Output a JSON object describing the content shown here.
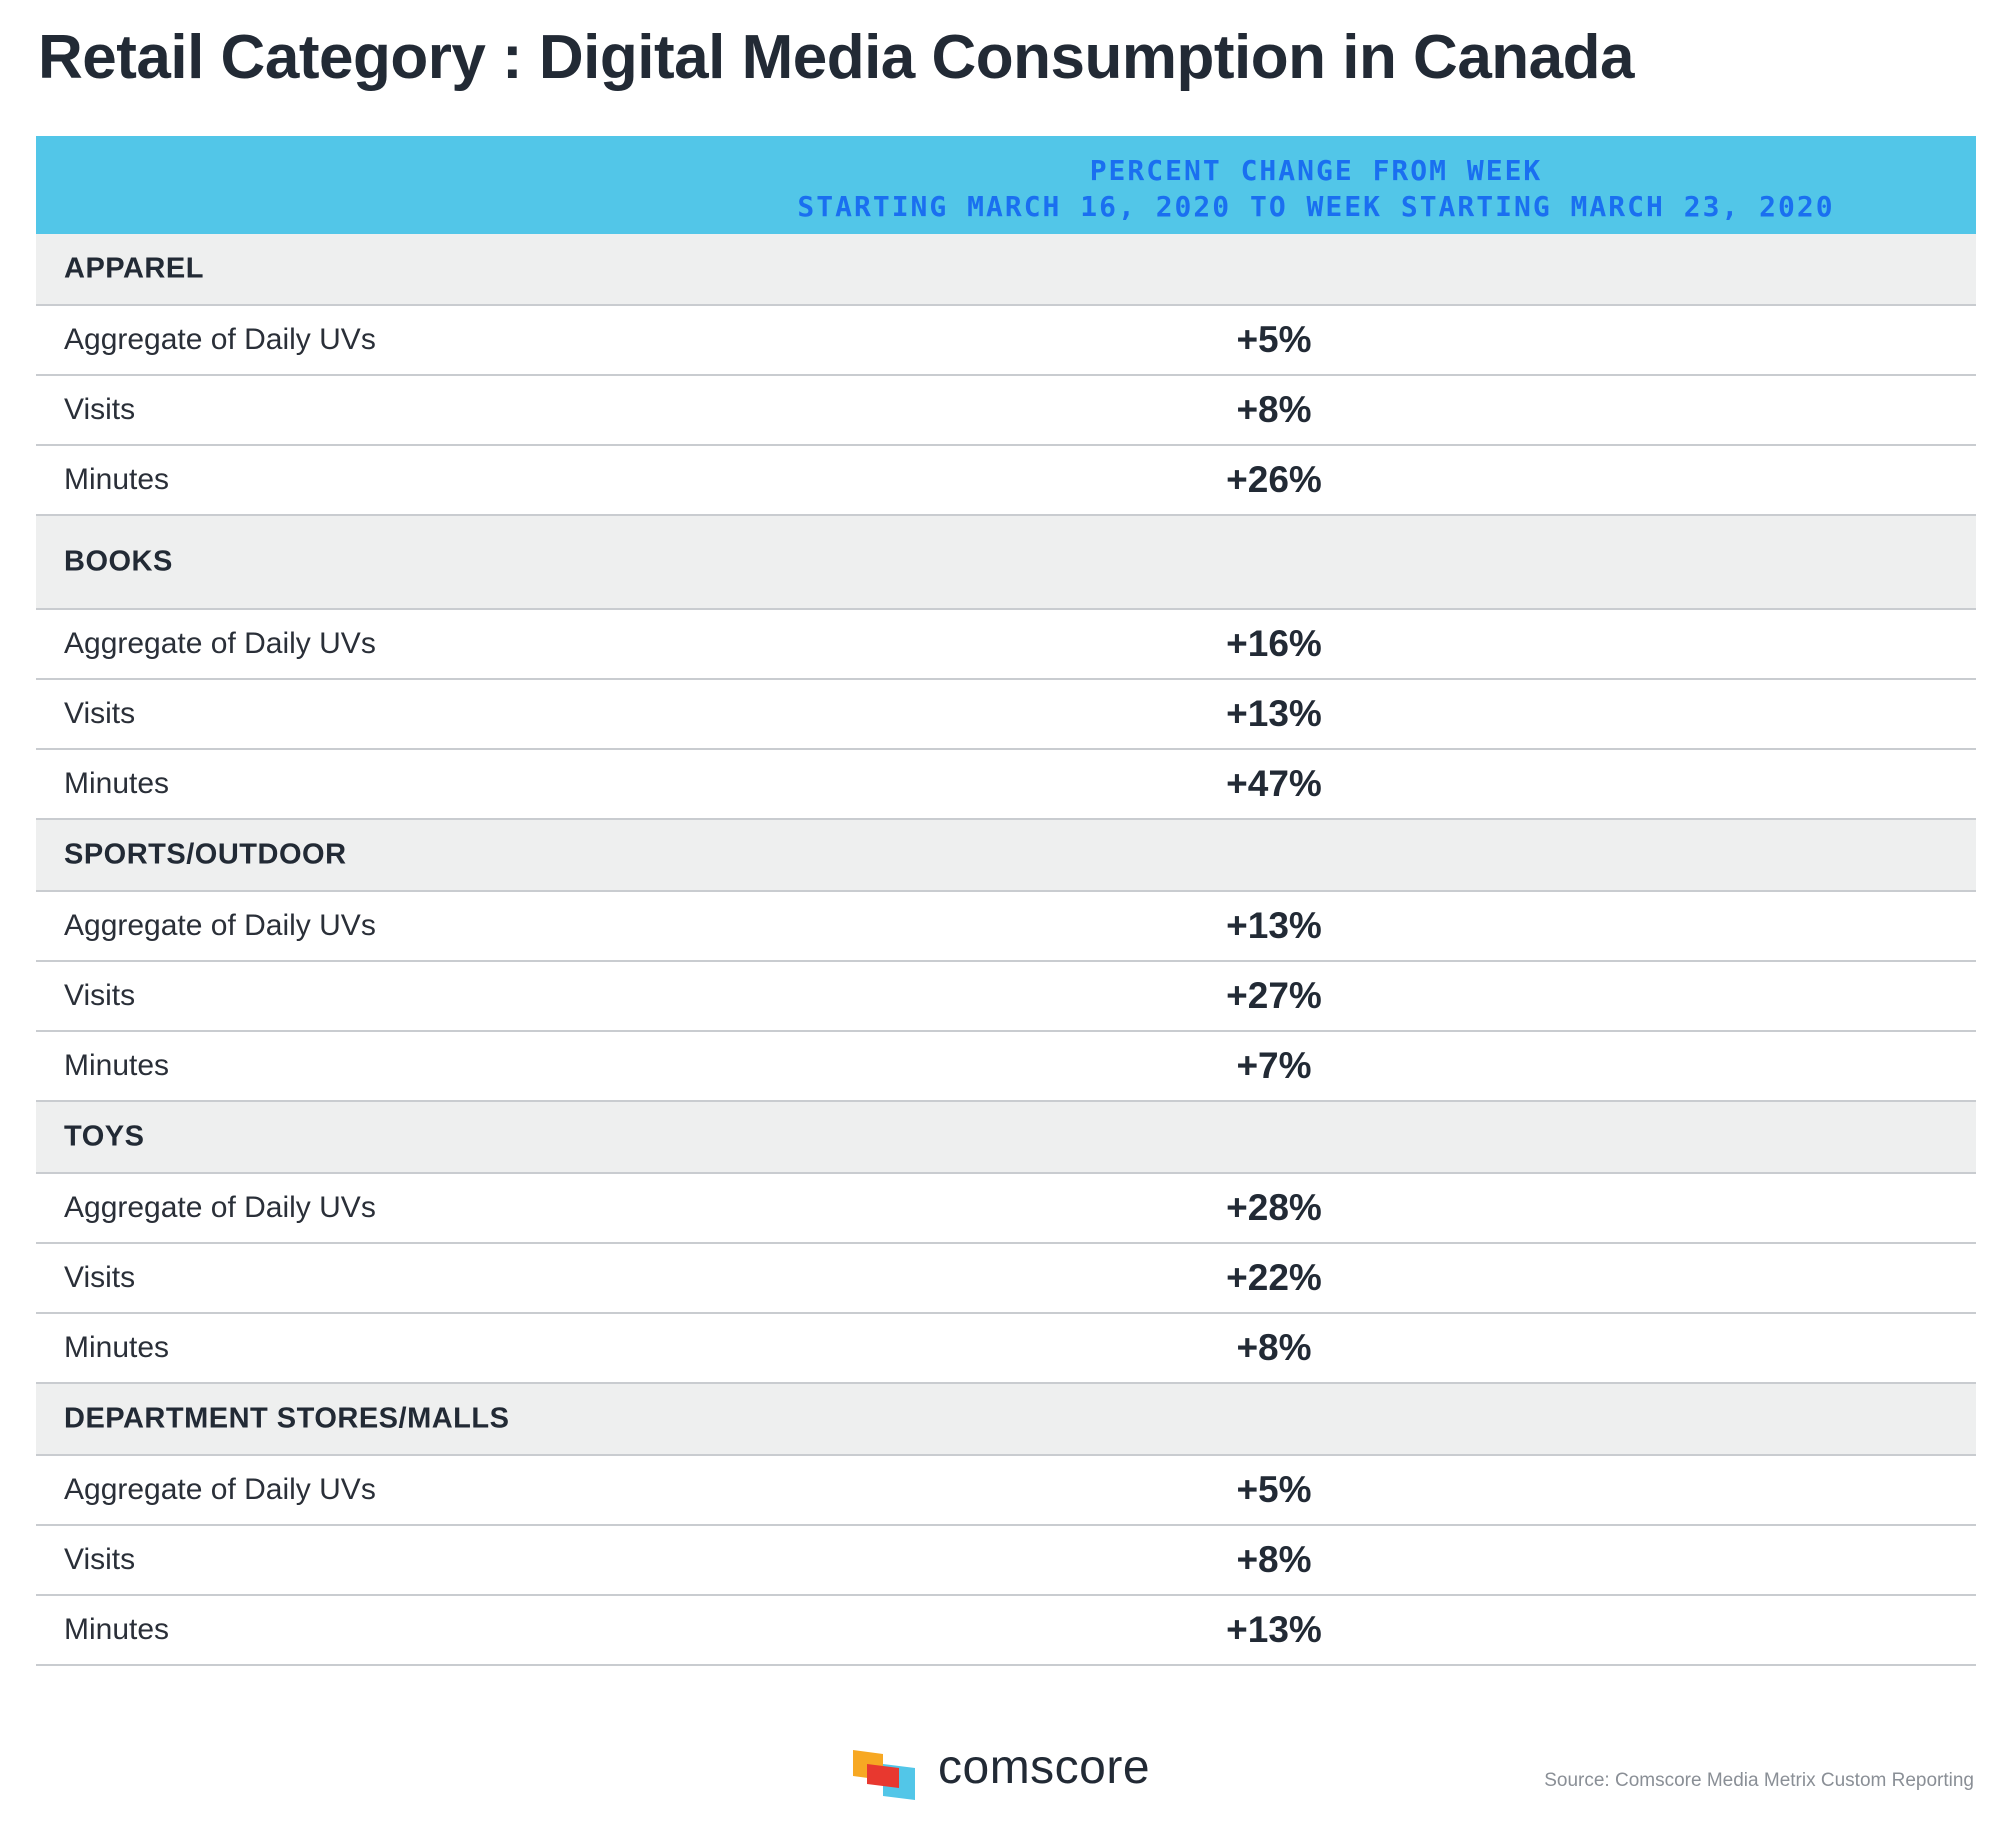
{
  "title": "Retail Category : Digital Media Consumption in Canada",
  "header": {
    "line1": "PERCENT CHANGE FROM WEEK",
    "line2": "STARTING MARCH 16, 2020 TO WEEK STARTING MARCH 23, 2020"
  },
  "chart_data": {
    "type": "table",
    "title": "Retail Category : Digital Media Consumption in Canada",
    "column_header": "PERCENT CHANGE FROM WEEK STARTING MARCH 16, 2020 TO WEEK STARTING MARCH 23, 2020",
    "categories": [
      {
        "name": "APPAREL",
        "rows": [
          {
            "metric": "Aggregate of Daily UVs",
            "value": "+5%"
          },
          {
            "metric": "Visits",
            "value": "+8%"
          },
          {
            "metric": "Minutes",
            "value": "+26%"
          }
        ]
      },
      {
        "name": "BOOKS",
        "rows": [
          {
            "metric": "Aggregate of Daily UVs",
            "value": "+16%"
          },
          {
            "metric": "Visits",
            "value": "+13%"
          },
          {
            "metric": "Minutes",
            "value": "+47%"
          }
        ]
      },
      {
        "name": "SPORTS/OUTDOOR",
        "rows": [
          {
            "metric": "Aggregate of Daily UVs",
            "value": "+13%"
          },
          {
            "metric": "Visits",
            "value": "+27%"
          },
          {
            "metric": "Minutes",
            "value": "+7%"
          }
        ]
      },
      {
        "name": "TOYS",
        "rows": [
          {
            "metric": "Aggregate of Daily UVs",
            "value": "+28%"
          },
          {
            "metric": "Visits",
            "value": "+22%"
          },
          {
            "metric": "Minutes",
            "value": "+8%"
          }
        ]
      },
      {
        "name": "DEPARTMENT STORES/MALLS",
        "rows": [
          {
            "metric": "Aggregate of Daily UVs",
            "value": "+5%"
          },
          {
            "metric": "Visits",
            "value": "+8%"
          },
          {
            "metric": "Minutes",
            "value": "+13%"
          }
        ]
      }
    ]
  },
  "footer": {
    "brand": "comscore",
    "source": "Source: Comscore Media Metrix Custom Reporting"
  },
  "colors": {
    "header_bg": "#52c6e8",
    "header_text": "#1a6ff0",
    "category_bg": "#eeefef",
    "text": "#222a35",
    "logo_orange": "#f7a823",
    "logo_red": "#e8382f",
    "logo_cyan": "#52c6e8"
  }
}
